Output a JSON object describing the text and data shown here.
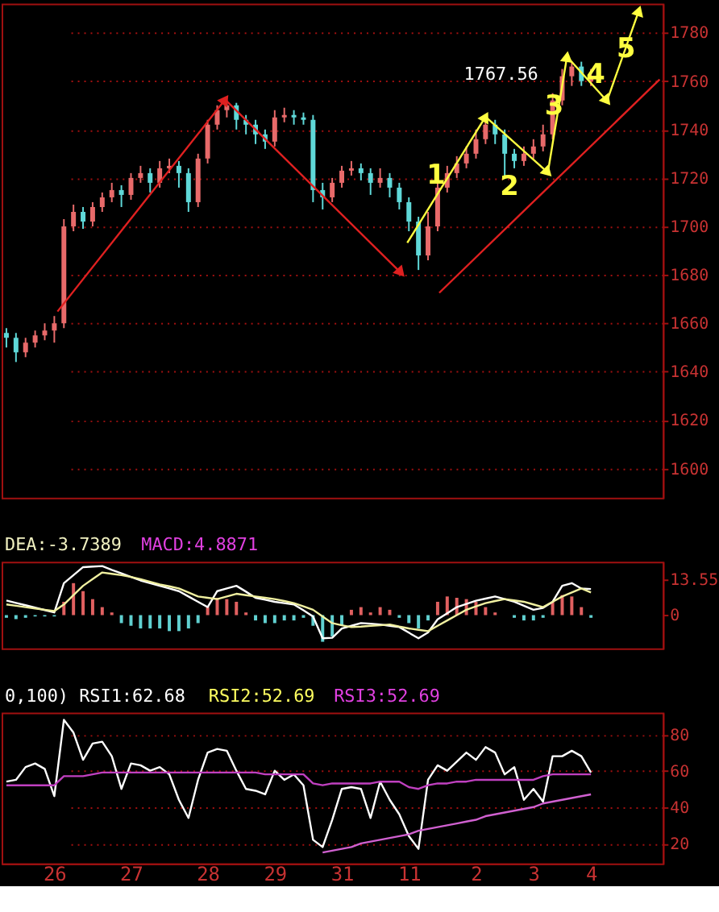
{
  "chart_data": [
    {
      "type": "candlestick",
      "ylim": [
        1588,
        1792
      ],
      "yticks": [
        1600,
        1620,
        1640,
        1660,
        1680,
        1700,
        1720,
        1740,
        1760,
        1780
      ],
      "grid": "y",
      "tick_labels": "y",
      "categories": [
        null,
        null,
        null,
        null,
        null,
        null,
        null,
        null,
        null,
        null,
        null,
        null,
        null,
        null,
        null,
        null,
        null,
        null,
        null,
        null,
        null,
        null,
        null,
        null,
        null,
        null,
        null,
        null,
        null,
        null,
        null,
        null,
        null,
        null,
        null,
        null,
        null,
        null,
        null,
        null,
        null,
        null,
        null,
        null,
        null,
        null,
        null,
        null,
        null,
        null,
        null,
        null,
        null,
        null,
        null,
        null,
        null,
        null,
        null,
        null,
        null,
        null
      ],
      "ohlc": [
        [
          1656,
          1658,
          1650,
          1654
        ],
        [
          1654,
          1656,
          1644,
          1648
        ],
        [
          1648,
          1654,
          1646,
          1652
        ],
        [
          1652,
          1657,
          1650,
          1655
        ],
        [
          1655,
          1660,
          1653,
          1657
        ],
        [
          1657,
          1663,
          1652,
          1660
        ],
        [
          1660,
          1703,
          1658,
          1700
        ],
        [
          1700,
          1709,
          1698,
          1706
        ],
        [
          1706,
          1708,
          1699,
          1702
        ],
        [
          1702,
          1710,
          1700,
          1708
        ],
        [
          1708,
          1714,
          1706,
          1712
        ],
        [
          1712,
          1718,
          1710,
          1715
        ],
        [
          1715,
          1717,
          1708,
          1713
        ],
        [
          1713,
          1722,
          1711,
          1720
        ],
        [
          1720,
          1725,
          1718,
          1722
        ],
        [
          1722,
          1724,
          1714,
          1718
        ],
        [
          1718,
          1727,
          1716,
          1724
        ],
        [
          1724,
          1728,
          1722,
          1725
        ],
        [
          1725,
          1727,
          1716,
          1722
        ],
        [
          1722,
          1724,
          1706,
          1710
        ],
        [
          1710,
          1730,
          1708,
          1728
        ],
        [
          1728,
          1744,
          1726,
          1742
        ],
        [
          1742,
          1750,
          1740,
          1748
        ],
        [
          1748,
          1752,
          1745,
          1750
        ],
        [
          1750,
          1751,
          1740,
          1744
        ],
        [
          1744,
          1746,
          1738,
          1742
        ],
        [
          1742,
          1744,
          1734,
          1738
        ],
        [
          1738,
          1740,
          1732,
          1735
        ],
        [
          1735,
          1748,
          1733,
          1745
        ],
        [
          1745,
          1749,
          1743,
          1746
        ],
        [
          1746,
          1748,
          1742,
          1745
        ],
        [
          1745,
          1747,
          1742,
          1744
        ],
        [
          1744,
          1746,
          1710,
          1715
        ],
        [
          1715,
          1718,
          1707,
          1712
        ],
        [
          1712,
          1720,
          1710,
          1718
        ],
        [
          1718,
          1725,
          1716,
          1723
        ],
        [
          1723,
          1727,
          1721,
          1724
        ],
        [
          1724,
          1726,
          1719,
          1722
        ],
        [
          1722,
          1724,
          1713,
          1718
        ],
        [
          1718,
          1724,
          1716,
          1720
        ],
        [
          1720,
          1722,
          1712,
          1716
        ],
        [
          1716,
          1718,
          1707,
          1710
        ],
        [
          1710,
          1712,
          1698,
          1702
        ],
        [
          1702,
          1704,
          1682,
          1688
        ],
        [
          1688,
          1706,
          1686,
          1700
        ],
        [
          1700,
          1719,
          1698,
          1716
        ],
        [
          1716,
          1725,
          1714,
          1722
        ],
        [
          1722,
          1729,
          1720,
          1726
        ],
        [
          1726,
          1733,
          1724,
          1730
        ],
        [
          1730,
          1740,
          1728,
          1736
        ],
        [
          1736,
          1745,
          1734,
          1742
        ],
        [
          1742,
          1744,
          1734,
          1738
        ],
        [
          1738,
          1740,
          1720,
          1730
        ],
        [
          1730,
          1732,
          1724,
          1727
        ],
        [
          1727,
          1733,
          1725,
          1730
        ],
        [
          1730,
          1736,
          1728,
          1733
        ],
        [
          1733,
          1742,
          1731,
          1738
        ],
        [
          1738,
          1755,
          1736,
          1752
        ],
        [
          1752,
          1765,
          1750,
          1762
        ],
        [
          1762,
          1767.56,
          1758,
          1766
        ],
        [
          1766,
          1768,
          1758,
          1760
        ],
        [
          1760,
          1765,
          1758,
          1762
        ]
      ],
      "colors": [
        "#5fd8d8",
        "#5fd8d8",
        "#e86a6a",
        "#e86a6a",
        "#e86a6a",
        "#e86a6a",
        "#e86a6a",
        "#e86a6a",
        "#5fd8d8",
        "#e86a6a",
        "#e86a6a",
        "#e86a6a",
        "#5fd8d8",
        "#e86a6a",
        "#e86a6a",
        "#5fd8d8",
        "#e86a6a",
        "#e86a6a",
        "#5fd8d8",
        "#5fd8d8",
        "#e86a6a",
        "#e86a6a",
        "#e86a6a",
        "#e86a6a",
        "#5fd8d8",
        "#5fd8d8",
        "#5fd8d8",
        "#5fd8d8",
        "#e86a6a",
        "#e86a6a",
        "#5fd8d8",
        "#5fd8d8",
        "#5fd8d8",
        "#5fd8d8",
        "#e86a6a",
        "#e86a6a",
        "#e86a6a",
        "#5fd8d8",
        "#5fd8d8",
        "#e86a6a",
        "#5fd8d8",
        "#5fd8d8",
        "#5fd8d8",
        "#5fd8d8",
        "#e86a6a",
        "#e86a6a",
        "#e86a6a",
        "#e86a6a",
        "#e86a6a",
        "#e86a6a",
        "#e86a6a",
        "#5fd8d8",
        "#5fd8d8",
        "#5fd8d8",
        "#e86a6a",
        "#e86a6a",
        "#e86a6a",
        "#e86a6a",
        "#e86a6a",
        "#e86a6a",
        "#5fd8d8",
        "#e86a6a"
      ],
      "annotations": [
        "1767.56",
        "1",
        "2",
        "3",
        "4",
        "5"
      ]
    },
    {
      "type": "bar",
      "ylim": [
        -12.5,
        20
      ],
      "yticks": [
        0,
        13.55
      ],
      "tick_labels": "y",
      "categories": [
        null,
        null,
        null,
        null,
        null,
        null,
        null,
        null,
        null,
        null,
        null,
        null,
        null,
        null,
        null,
        null,
        null,
        null,
        null,
        null,
        null,
        null,
        null,
        null,
        null,
        null,
        null,
        null,
        null,
        null,
        null,
        null,
        null,
        null,
        null,
        null,
        null,
        null,
        null,
        null,
        null,
        null,
        null,
        null,
        null,
        null,
        null,
        null,
        null,
        null,
        null,
        null,
        null,
        null,
        null,
        null,
        null,
        null,
        null,
        null,
        null,
        null
      ],
      "series": [
        {
          "type": "bar",
          "values": [
            -1,
            -1.5,
            -1,
            -0.5,
            -0.5,
            -0.5,
            5,
            12,
            9,
            6,
            3,
            1,
            -3,
            -4,
            -5,
            -5,
            -5,
            -6,
            -6,
            -5,
            -3,
            3,
            6.5,
            6,
            5,
            1,
            -2,
            -3,
            -3,
            -2,
            -2,
            -1,
            -4,
            -10,
            -8,
            -4,
            2,
            3,
            1,
            3,
            2,
            -1,
            -3,
            -5,
            -2,
            5,
            7,
            6.5,
            6,
            5,
            3,
            1,
            0,
            -1,
            -2,
            -2,
            -1,
            5,
            7.5,
            7,
            3,
            -1
          ],
          "colors": [
            "#60d0d0",
            "#60d0d0",
            "#60d0d0",
            "#60d0d0",
            "#60d0d0",
            "#60d0d0",
            "#e06060",
            "#e06060",
            "#e06060",
            "#e06060",
            "#e06060",
            "#e06060",
            "#60d0d0",
            "#60d0d0",
            "#60d0d0",
            "#60d0d0",
            "#60d0d0",
            "#60d0d0",
            "#60d0d0",
            "#60d0d0",
            "#60d0d0",
            "#e06060",
            "#e06060",
            "#e06060",
            "#e06060",
            "#e06060",
            "#60d0d0",
            "#60d0d0",
            "#60d0d0",
            "#60d0d0",
            "#60d0d0",
            "#60d0d0",
            "#60d0d0",
            "#60d0d0",
            "#60d0d0",
            "#60d0d0",
            "#e06060",
            "#e06060",
            "#e06060",
            "#e06060",
            "#e06060",
            "#60d0d0",
            "#60d0d0",
            "#60d0d0",
            "#60d0d0",
            "#e06060",
            "#e06060",
            "#e06060",
            "#e06060",
            "#e06060",
            "#e06060",
            "#e06060",
            "#e06060",
            "#60d0d0",
            "#60d0d0",
            "#60d0d0",
            "#60d0d0",
            "#e06060",
            "#e06060",
            "#e06060",
            "#e06060",
            "#60d0d0"
          ]
        },
        {
          "type": "line",
          "color": "#ffffff",
          "values": [
            5.5,
            4.6,
            3.7,
            2.8,
            1.9,
            1,
            12,
            15,
            18,
            18.2,
            18.4,
            17,
            15.7,
            14.3,
            13,
            12,
            11,
            10,
            9,
            7,
            5,
            3,
            9,
            10,
            11,
            8.8,
            6.5,
            5.8,
            5,
            4.5,
            4,
            1.8,
            -0.5,
            -8.7,
            -8.5,
            -5,
            -4,
            -3,
            -3.2,
            -3.5,
            -4,
            -4.5,
            -6.6,
            -8.7,
            -6.5,
            -1.6,
            0.7,
            3,
            4.2,
            5.4,
            6.2,
            7,
            6,
            5,
            3.5,
            2,
            2.7,
            5,
            11,
            12,
            10,
            9.8
          ]
        },
        {
          "type": "line",
          "color": "#f0f0a0",
          "values": [
            4,
            3.5,
            3,
            2.5,
            2,
            1.5,
            4,
            7.5,
            11,
            13.5,
            16,
            15.5,
            15,
            14.3,
            13.5,
            12.5,
            11.5,
            10.8,
            10,
            8.5,
            7,
            6.5,
            6,
            7,
            8,
            7.5,
            7,
            6.5,
            6,
            5.3,
            4.5,
            3.3,
            2,
            -0.5,
            -3,
            -3.8,
            -4.5,
            -4.3,
            -4,
            -3.8,
            -3.5,
            -4.3,
            -5,
            -5.5,
            -6,
            -4,
            -2,
            0,
            2,
            3.3,
            4.5,
            5.3,
            6,
            5.5,
            5,
            4,
            3,
            5,
            7,
            8.5,
            10,
            8.5
          ]
        }
      ],
      "annotations": [
        "DEA:-3.7389",
        "MACD:4.8871"
      ]
    },
    {
      "type": "line",
      "ylim": [
        9,
        92
      ],
      "yticks": [
        20,
        40,
        60,
        80
      ],
      "grid": "y",
      "categories": [
        null,
        null,
        null,
        null,
        null,
        "26",
        null,
        null,
        null,
        null,
        null,
        null,
        null,
        "27",
        null,
        null,
        null,
        null,
        null,
        null,
        null,
        "28",
        null,
        null,
        null,
        null,
        null,
        null,
        "29",
        null,
        null,
        null,
        null,
        null,
        null,
        "31",
        null,
        null,
        null,
        null,
        null,
        null,
        "11",
        null,
        null,
        null,
        null,
        null,
        null,
        "2",
        null,
        null,
        null,
        null,
        null,
        "3",
        null,
        null,
        null,
        null,
        null,
        "4"
      ],
      "series": [
        {
          "type": "line",
          "color": "#ffffff",
          "values": [
            54,
            55,
            62,
            64,
            61,
            46,
            88,
            81,
            66,
            75,
            76,
            68,
            50,
            64,
            63,
            60,
            62,
            58,
            44,
            34,
            55,
            70,
            72,
            71,
            60,
            50,
            49,
            47,
            60,
            55,
            58,
            52,
            22,
            18,
            33,
            50,
            51,
            50,
            34,
            54,
            44,
            36,
            24,
            17,
            55,
            63,
            60,
            65,
            70,
            66,
            73,
            70,
            58,
            62,
            44,
            50,
            43,
            68,
            68,
            71,
            68,
            59
          ]
        },
        {
          "type": "line",
          "color": "#c040c0",
          "values": [
            52,
            52,
            52,
            52,
            52,
            52,
            57,
            57,
            57,
            58,
            59,
            59,
            59,
            59,
            59,
            59,
            59,
            59,
            59,
            59,
            59,
            59,
            59,
            59,
            59,
            59,
            59,
            58,
            58,
            58,
            58,
            58,
            53,
            52,
            53,
            53,
            53,
            53,
            53,
            54,
            54,
            54,
            51,
            50,
            52,
            53,
            53,
            54,
            54,
            55,
            55,
            55,
            55,
            55,
            55,
            55,
            57,
            58,
            58,
            58,
            58,
            58
          ]
        },
        {
          "type": "line",
          "color": "#d060d0",
          "values": [
            null,
            null,
            null,
            null,
            null,
            null,
            null,
            null,
            null,
            null,
            null,
            null,
            null,
            null,
            null,
            null,
            null,
            null,
            null,
            null,
            null,
            null,
            null,
            null,
            null,
            null,
            null,
            null,
            null,
            null,
            null,
            null,
            null,
            15,
            16,
            17,
            18,
            20,
            21,
            22,
            23,
            24,
            25,
            27,
            28,
            29,
            30,
            31,
            32,
            33,
            35,
            36,
            37,
            38,
            39,
            40,
            42,
            43,
            44,
            45,
            46,
            47
          ]
        }
      ],
      "annotations": [
        "0,100) RSI1:62.68",
        "RSI2:52.69",
        "RSI3:52.69"
      ]
    }
  ]
}
